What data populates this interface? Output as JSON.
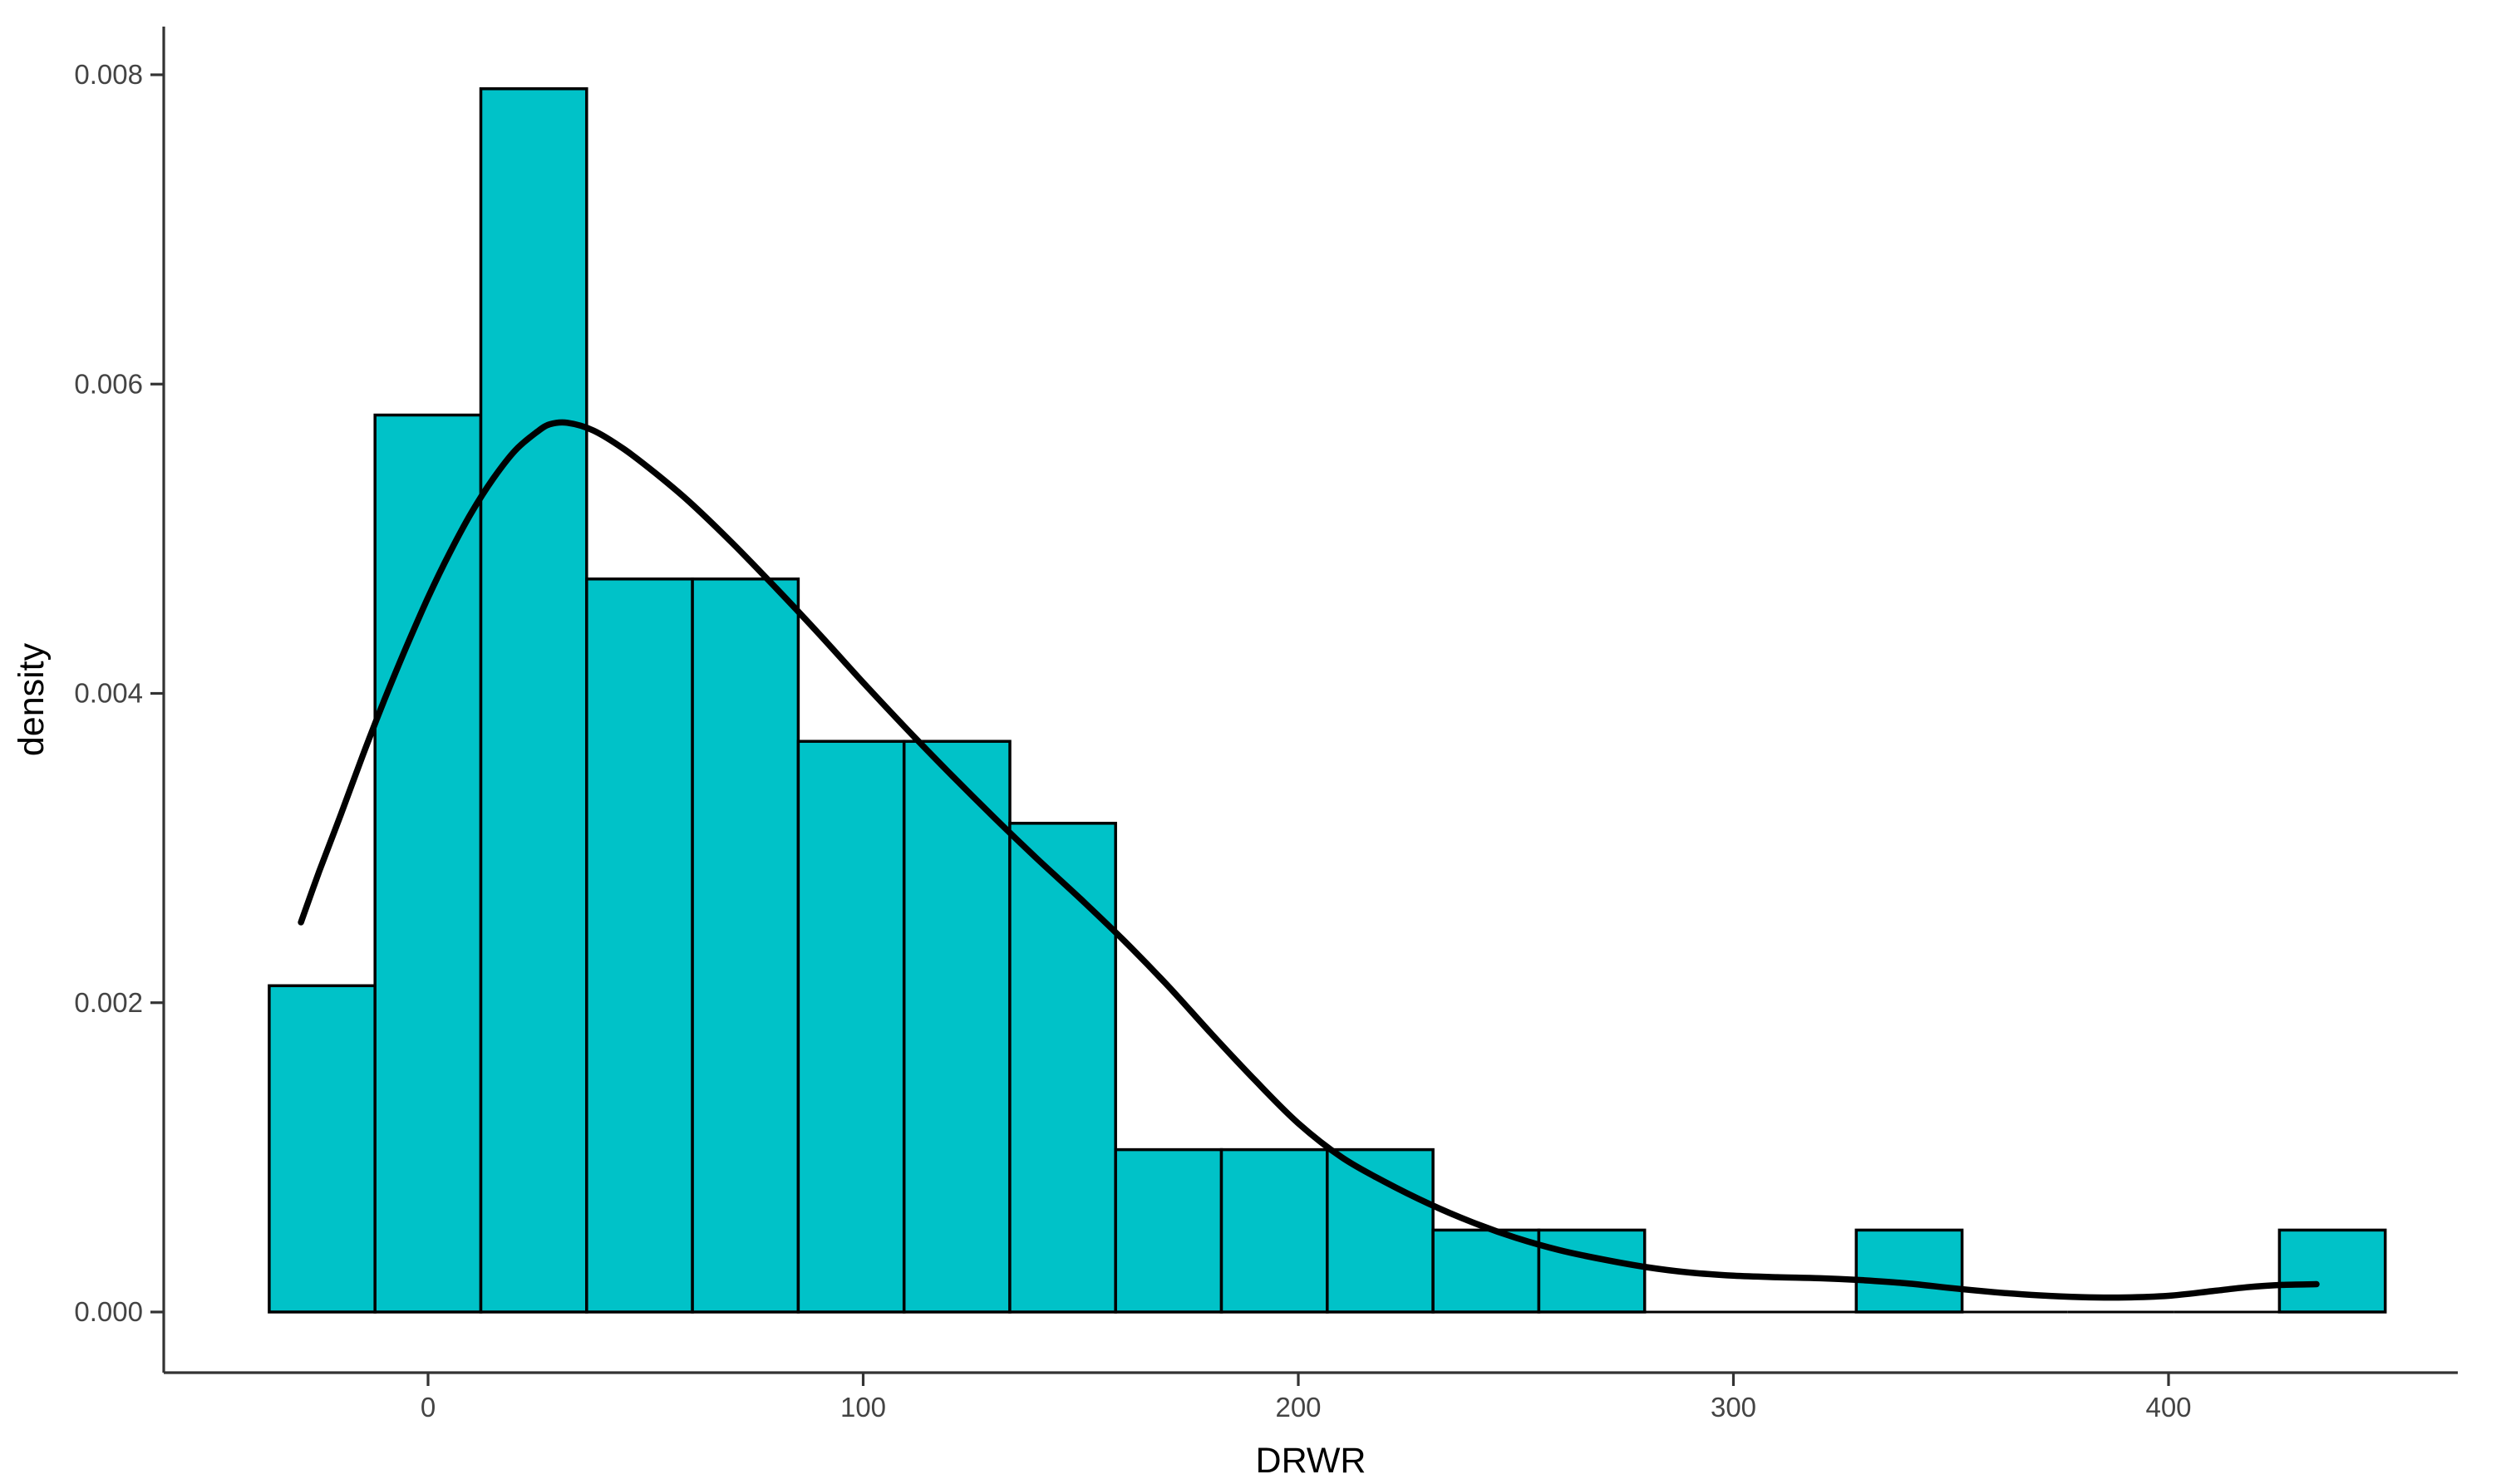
{
  "chart_data": {
    "type": "histogram_density_overlay",
    "title": "",
    "x_axis": {
      "label": "DRWR",
      "ticks": [
        {
          "value": 0,
          "label": "0"
        },
        {
          "value": 100,
          "label": "100"
        },
        {
          "value": 200,
          "label": "200"
        },
        {
          "value": 300,
          "label": "300"
        },
        {
          "value": 400,
          "label": "400"
        }
      ],
      "range_shown": [
        -61,
        466
      ]
    },
    "y_axis": {
      "label": "density",
      "ticks": [
        {
          "value": 0.0,
          "label": "0.000"
        },
        {
          "value": 0.002,
          "label": "0.002"
        },
        {
          "value": 0.004,
          "label": "0.004"
        },
        {
          "value": 0.006,
          "label": "0.006"
        },
        {
          "value": 0.008,
          "label": "0.008"
        }
      ],
      "range_shown": [
        -0.0004,
        0.00831
      ]
    },
    "histogram": {
      "bin_start": -36.5,
      "bin_width": 24.315,
      "bin_count": 20,
      "densities": [
        0.00211,
        0.0058,
        0.00791,
        0.00474,
        0.00474,
        0.00369,
        0.00369,
        0.00316,
        0.00105,
        0.00105,
        0.00105,
        0.00053,
        0.00053,
        0,
        0,
        0.00053,
        0,
        0,
        0,
        0.00053
      ],
      "approx_counts": [
        4,
        11,
        15,
        9,
        9,
        7,
        7,
        6,
        2,
        2,
        2,
        1,
        1,
        0,
        0,
        1,
        0,
        0,
        0,
        1
      ]
    },
    "density_curve": {
      "points": [
        [
          -29.2,
          0.00252
        ],
        [
          -25,
          0.00285
        ],
        [
          -20,
          0.00322
        ],
        [
          -15,
          0.0036
        ],
        [
          -10,
          0.00396
        ],
        [
          -5,
          0.0043
        ],
        [
          0,
          0.00462
        ],
        [
          5,
          0.00491
        ],
        [
          10,
          0.00517
        ],
        [
          15,
          0.00539
        ],
        [
          20,
          0.00557
        ],
        [
          25,
          0.00569
        ],
        [
          28,
          0.00574
        ],
        [
          32,
          0.00575
        ],
        [
          38,
          0.0057
        ],
        [
          45,
          0.00558
        ],
        [
          52,
          0.00543
        ],
        [
          60,
          0.00524
        ],
        [
          70,
          0.00497
        ],
        [
          80,
          0.00468
        ],
        [
          90,
          0.00438
        ],
        [
          100,
          0.00407
        ],
        [
          110,
          0.00377
        ],
        [
          120,
          0.00348
        ],
        [
          130,
          0.0032
        ],
        [
          140,
          0.00293
        ],
        [
          150,
          0.00267
        ],
        [
          160,
          0.0024
        ],
        [
          170,
          0.00211
        ],
        [
          180,
          0.0018
        ],
        [
          190,
          0.0015
        ],
        [
          200,
          0.00122
        ],
        [
          210,
          0.001
        ],
        [
          220,
          0.00084
        ],
        [
          230,
          0.0007
        ],
        [
          240,
          0.00058
        ],
        [
          250,
          0.00048
        ],
        [
          260,
          0.0004
        ],
        [
          270,
          0.00034
        ],
        [
          280,
          0.00029
        ],
        [
          290,
          0.000255
        ],
        [
          300,
          0.000235
        ],
        [
          310,
          0.000225
        ],
        [
          320,
          0.000218
        ],
        [
          330,
          0.000205
        ],
        [
          340,
          0.000185
        ],
        [
          350,
          0.000155
        ],
        [
          360,
          0.000128
        ],
        [
          370,
          0.000108
        ],
        [
          380,
          9.6e-05
        ],
        [
          390,
          9.4e-05
        ],
        [
          400,
          0.000105
        ],
        [
          410,
          0.000135
        ],
        [
          418,
          0.00016
        ],
        [
          426,
          0.000175
        ],
        [
          434,
          0.00018
        ]
      ]
    },
    "colors": {
      "bar_fill": "#00C2C8",
      "bar_stroke": "#000000",
      "curve": "#000000",
      "axis_line": "#333333",
      "tick_mark": "#333333",
      "tick_label": "#444444",
      "axis_title": "#000000",
      "background": "#ffffff"
    }
  }
}
